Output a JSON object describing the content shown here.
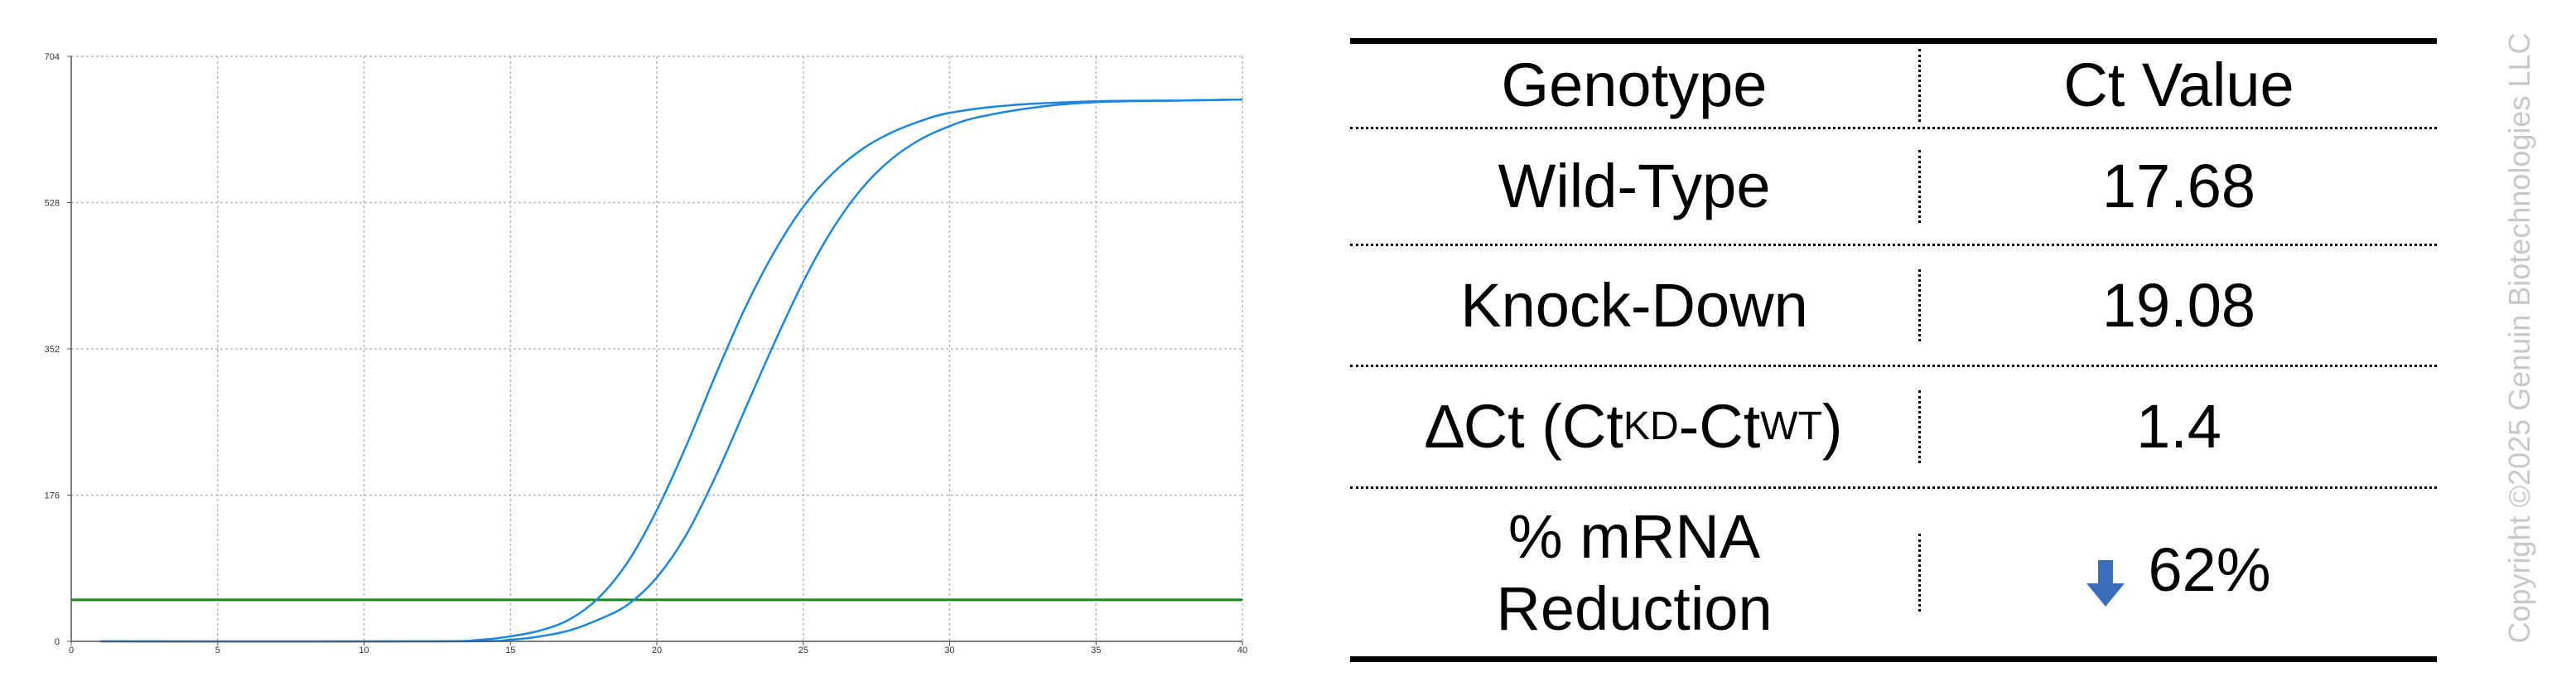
{
  "chart_data": {
    "type": "line",
    "title": "",
    "xlabel": "",
    "ylabel": "",
    "xlim": [
      0,
      40
    ],
    "ylim": [
      0,
      704
    ],
    "x_ticks": [
      0,
      5,
      10,
      15,
      20,
      25,
      30,
      35,
      40
    ],
    "y_ticks": [
      0,
      176,
      352,
      528,
      704
    ],
    "grid": true,
    "series": [
      {
        "color": "#1f86e0",
        "x": [
          1,
          12,
          14,
          15,
          16,
          17,
          18,
          19,
          20,
          21,
          22,
          23,
          24,
          25,
          26,
          27,
          28,
          29,
          30,
          32,
          35,
          38,
          40
        ],
        "y": [
          0,
          0,
          2,
          6,
          13,
          26,
          52,
          95,
          158,
          235,
          320,
          400,
          468,
          523,
          563,
          592,
          612,
          626,
          636,
          645,
          650,
          651,
          652
        ]
      },
      {
        "color": "#1f86e0",
        "x": [
          1,
          13,
          15,
          16,
          17,
          18,
          19,
          20,
          21,
          22,
          23,
          24,
          25,
          26,
          27,
          28,
          29,
          30,
          31,
          33,
          35,
          38,
          40
        ],
        "y": [
          0,
          0,
          2,
          6,
          13,
          26,
          44,
          77,
          128,
          198,
          278,
          358,
          433,
          496,
          545,
          580,
          604,
          620,
          631,
          643,
          649,
          651,
          652
        ]
      }
    ],
    "threshold": {
      "y": 50,
      "color": "#1a8a1a"
    }
  },
  "table": {
    "header": {
      "col1": "Genotype",
      "col2": "Ct Value"
    },
    "wild_type": {
      "label": "Wild-Type",
      "value": "17.68"
    },
    "knock_down": {
      "label": "Knock-Down",
      "value": "19.08"
    },
    "delta_ct": {
      "prefix": "∆Ct (Ct",
      "sub_kd": "KD",
      "mid": "-Ct",
      "sub_wt": "WT",
      "suffix": ")",
      "value": "1.4"
    },
    "reduction": {
      "label_line1": "% mRNA",
      "label_line2": "Reduction",
      "value": "62%",
      "arrow_icon": "down-arrow-icon",
      "arrow_color": "#3c6dbb"
    }
  },
  "copyright": "Copyright ©2025 Genuin Biotechnologies LLC"
}
